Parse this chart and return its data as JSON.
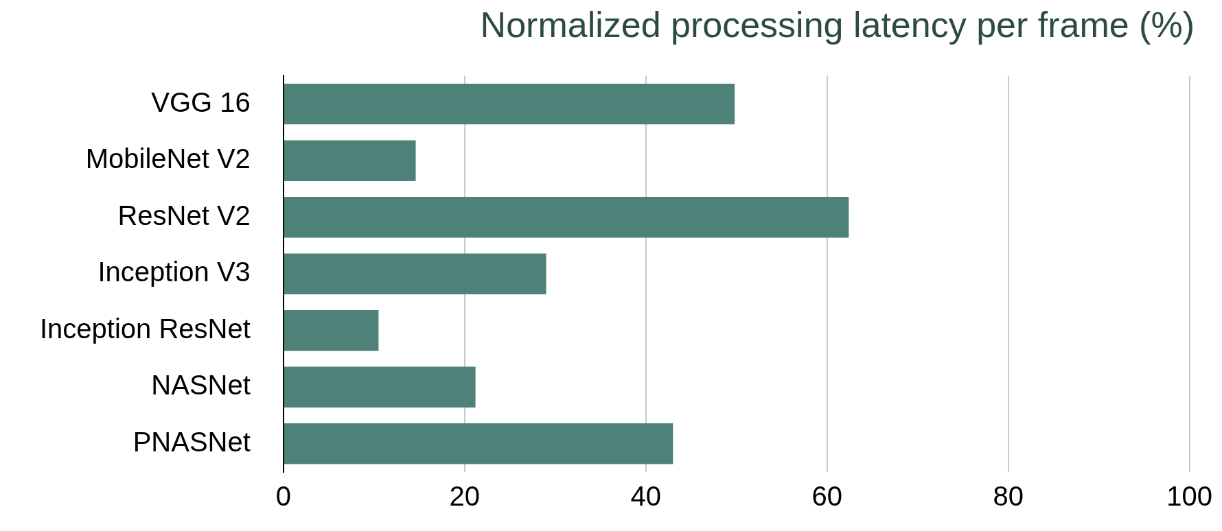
{
  "chart_data": {
    "type": "bar",
    "orientation": "horizontal",
    "title": "Normalized processing latency per frame (%)",
    "categories": [
      "VGG 16",
      "MobileNet V2",
      "ResNet V2",
      "Inception V3",
      "Inception ResNet",
      "NASNet",
      "PNASNet"
    ],
    "values": [
      49.8,
      14.6,
      62.4,
      29.0,
      10.5,
      21.2,
      43.0
    ],
    "color": "#4e8178",
    "xlim": [
      0,
      100
    ],
    "xticks": [
      0,
      20,
      40,
      60,
      80,
      100
    ],
    "grid": "x",
    "legend": false
  }
}
